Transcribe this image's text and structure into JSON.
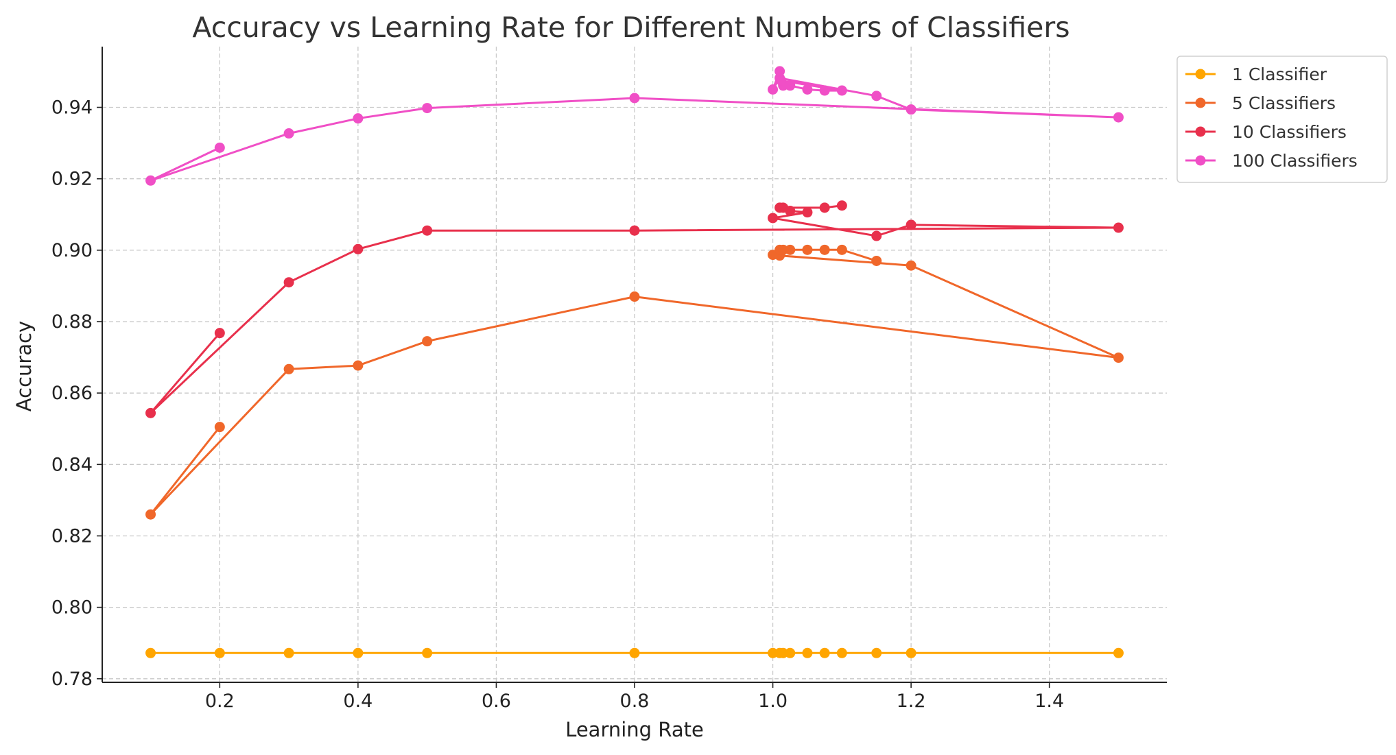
{
  "chart_data": {
    "type": "line",
    "title": "Accuracy vs Learning Rate for Different Numbers of Classifiers",
    "xlabel": "Learning Rate",
    "ylabel": "Accuracy",
    "xlim": [
      0.03,
      1.57
    ],
    "ylim": [
      0.779,
      0.957
    ],
    "xticks": [
      0.2,
      0.4,
      0.6,
      0.8,
      1.0,
      1.2,
      1.4
    ],
    "xtick_labels": [
      "0.2",
      "0.4",
      "0.6",
      "0.8",
      "1.0",
      "1.2",
      "1.4"
    ],
    "yticks": [
      0.78,
      0.8,
      0.82,
      0.84,
      0.86,
      0.88,
      0.9,
      0.92,
      0.94
    ],
    "ytick_labels": [
      "0.78",
      "0.80",
      "0.82",
      "0.84",
      "0.86",
      "0.88",
      "0.90",
      "0.92",
      "0.94"
    ],
    "grid": true,
    "legend_position": "outside-top-right",
    "series": [
      {
        "name": "1 Classifier",
        "color": "#FFA500",
        "x": [
          0.1,
          0.2,
          0.3,
          0.4,
          0.5,
          0.8,
          1.0,
          1.01,
          1.015,
          1.025,
          1.05,
          1.075,
          1.1,
          1.15,
          1.2,
          1.5
        ],
        "y": [
          0.7872,
          0.7872,
          0.7872,
          0.7872,
          0.7872,
          0.7872,
          0.7872,
          0.7872,
          0.7872,
          0.7872,
          0.7872,
          0.7872,
          0.7872,
          0.7872,
          0.7872,
          0.7872
        ]
      },
      {
        "name": "5 Classifiers",
        "color": "#F0672A",
        "x": [
          0.2,
          0.1,
          0.3,
          0.4,
          0.5,
          0.8,
          1.5,
          1.2,
          1.01,
          1.0,
          1.01,
          1.015,
          1.025,
          1.05,
          1.075,
          1.1,
          1.15
        ],
        "y": [
          0.8505,
          0.826,
          0.8667,
          0.8677,
          0.8745,
          0.887,
          0.8699,
          0.8957,
          0.8985,
          0.8987,
          0.9001,
          0.9001,
          0.9001,
          0.9001,
          0.9001,
          0.9001,
          0.897
        ]
      },
      {
        "name": "10 Classifiers",
        "color": "#E8304C",
        "x": [
          0.2,
          0.1,
          0.3,
          0.4,
          0.5,
          0.8,
          1.5,
          1.2,
          1.15,
          1.0,
          1.05,
          1.025,
          1.01,
          1.015,
          1.075,
          1.1
        ],
        "y": [
          0.8768,
          0.8544,
          0.891,
          0.9003,
          0.9055,
          0.9055,
          0.9063,
          0.9071,
          0.904,
          0.909,
          0.9106,
          0.911,
          0.9119,
          0.9119,
          0.9119,
          0.9125
        ]
      },
      {
        "name": "100 Classifiers",
        "color": "#F04FC6",
        "x": [
          0.2,
          0.1,
          0.3,
          0.4,
          0.5,
          0.8,
          1.5,
          1.2,
          1.15,
          1.01,
          1.0,
          1.01,
          1.015,
          1.025,
          1.05,
          1.075,
          1.1,
          1.012
        ],
        "y": [
          0.9287,
          0.9195,
          0.9327,
          0.9369,
          0.9398,
          0.9426,
          0.9372,
          0.9394,
          0.9432,
          0.9482,
          0.945,
          0.9501,
          0.9461,
          0.9461,
          0.945,
          0.9447,
          0.9447,
          0.9475
        ]
      }
    ]
  }
}
